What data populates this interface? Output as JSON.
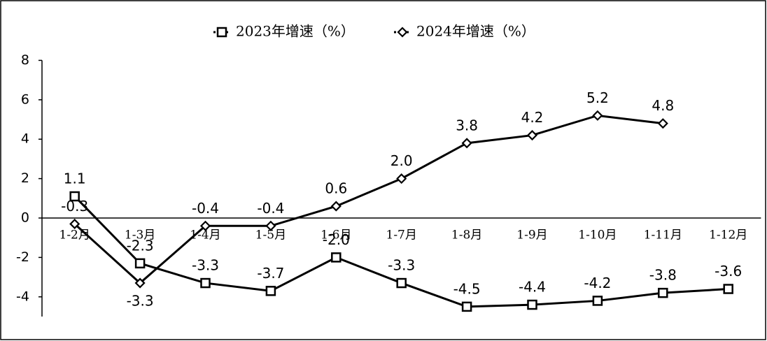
{
  "chart_data": {
    "type": "line",
    "categories": [
      "1-2月",
      "1-3月",
      "1-4月",
      "1-5月",
      "1-6月",
      "1-7月",
      "1-8月",
      "1-9月",
      "1-10月",
      "1-11月",
      "1-12月"
    ],
    "series": [
      {
        "name": "2023年增速（%）",
        "color": "#000000",
        "marker": "square",
        "values": [
          1.1,
          -2.3,
          -3.3,
          -3.7,
          -2.0,
          -3.3,
          -4.5,
          -4.4,
          -4.2,
          -3.8,
          -3.6
        ],
        "value_labels": [
          "1.1",
          "-2.3",
          "-3.3",
          "-3.7",
          "-2.0",
          "-3.3",
          "-4.5",
          "-4.4",
          "-4.2",
          "-3.8",
          "-3.6"
        ]
      },
      {
        "name": "2024年增速（%）",
        "color": "#000000",
        "marker": "diamond",
        "values": [
          -0.3,
          -3.3,
          -0.4,
          -0.4,
          0.6,
          2.0,
          3.8,
          4.2,
          5.2,
          4.8,
          null
        ],
        "value_labels": [
          "-0.3",
          "-3.3",
          "-0.4",
          "-0.4",
          "0.6",
          "2.0",
          "3.8",
          "4.2",
          "5.2",
          "4.8",
          null
        ]
      }
    ],
    "ylim": [
      -5,
      8
    ],
    "yticks": [
      -4,
      -2,
      0,
      2,
      4,
      6,
      8
    ],
    "grid": false,
    "legend": "top"
  }
}
